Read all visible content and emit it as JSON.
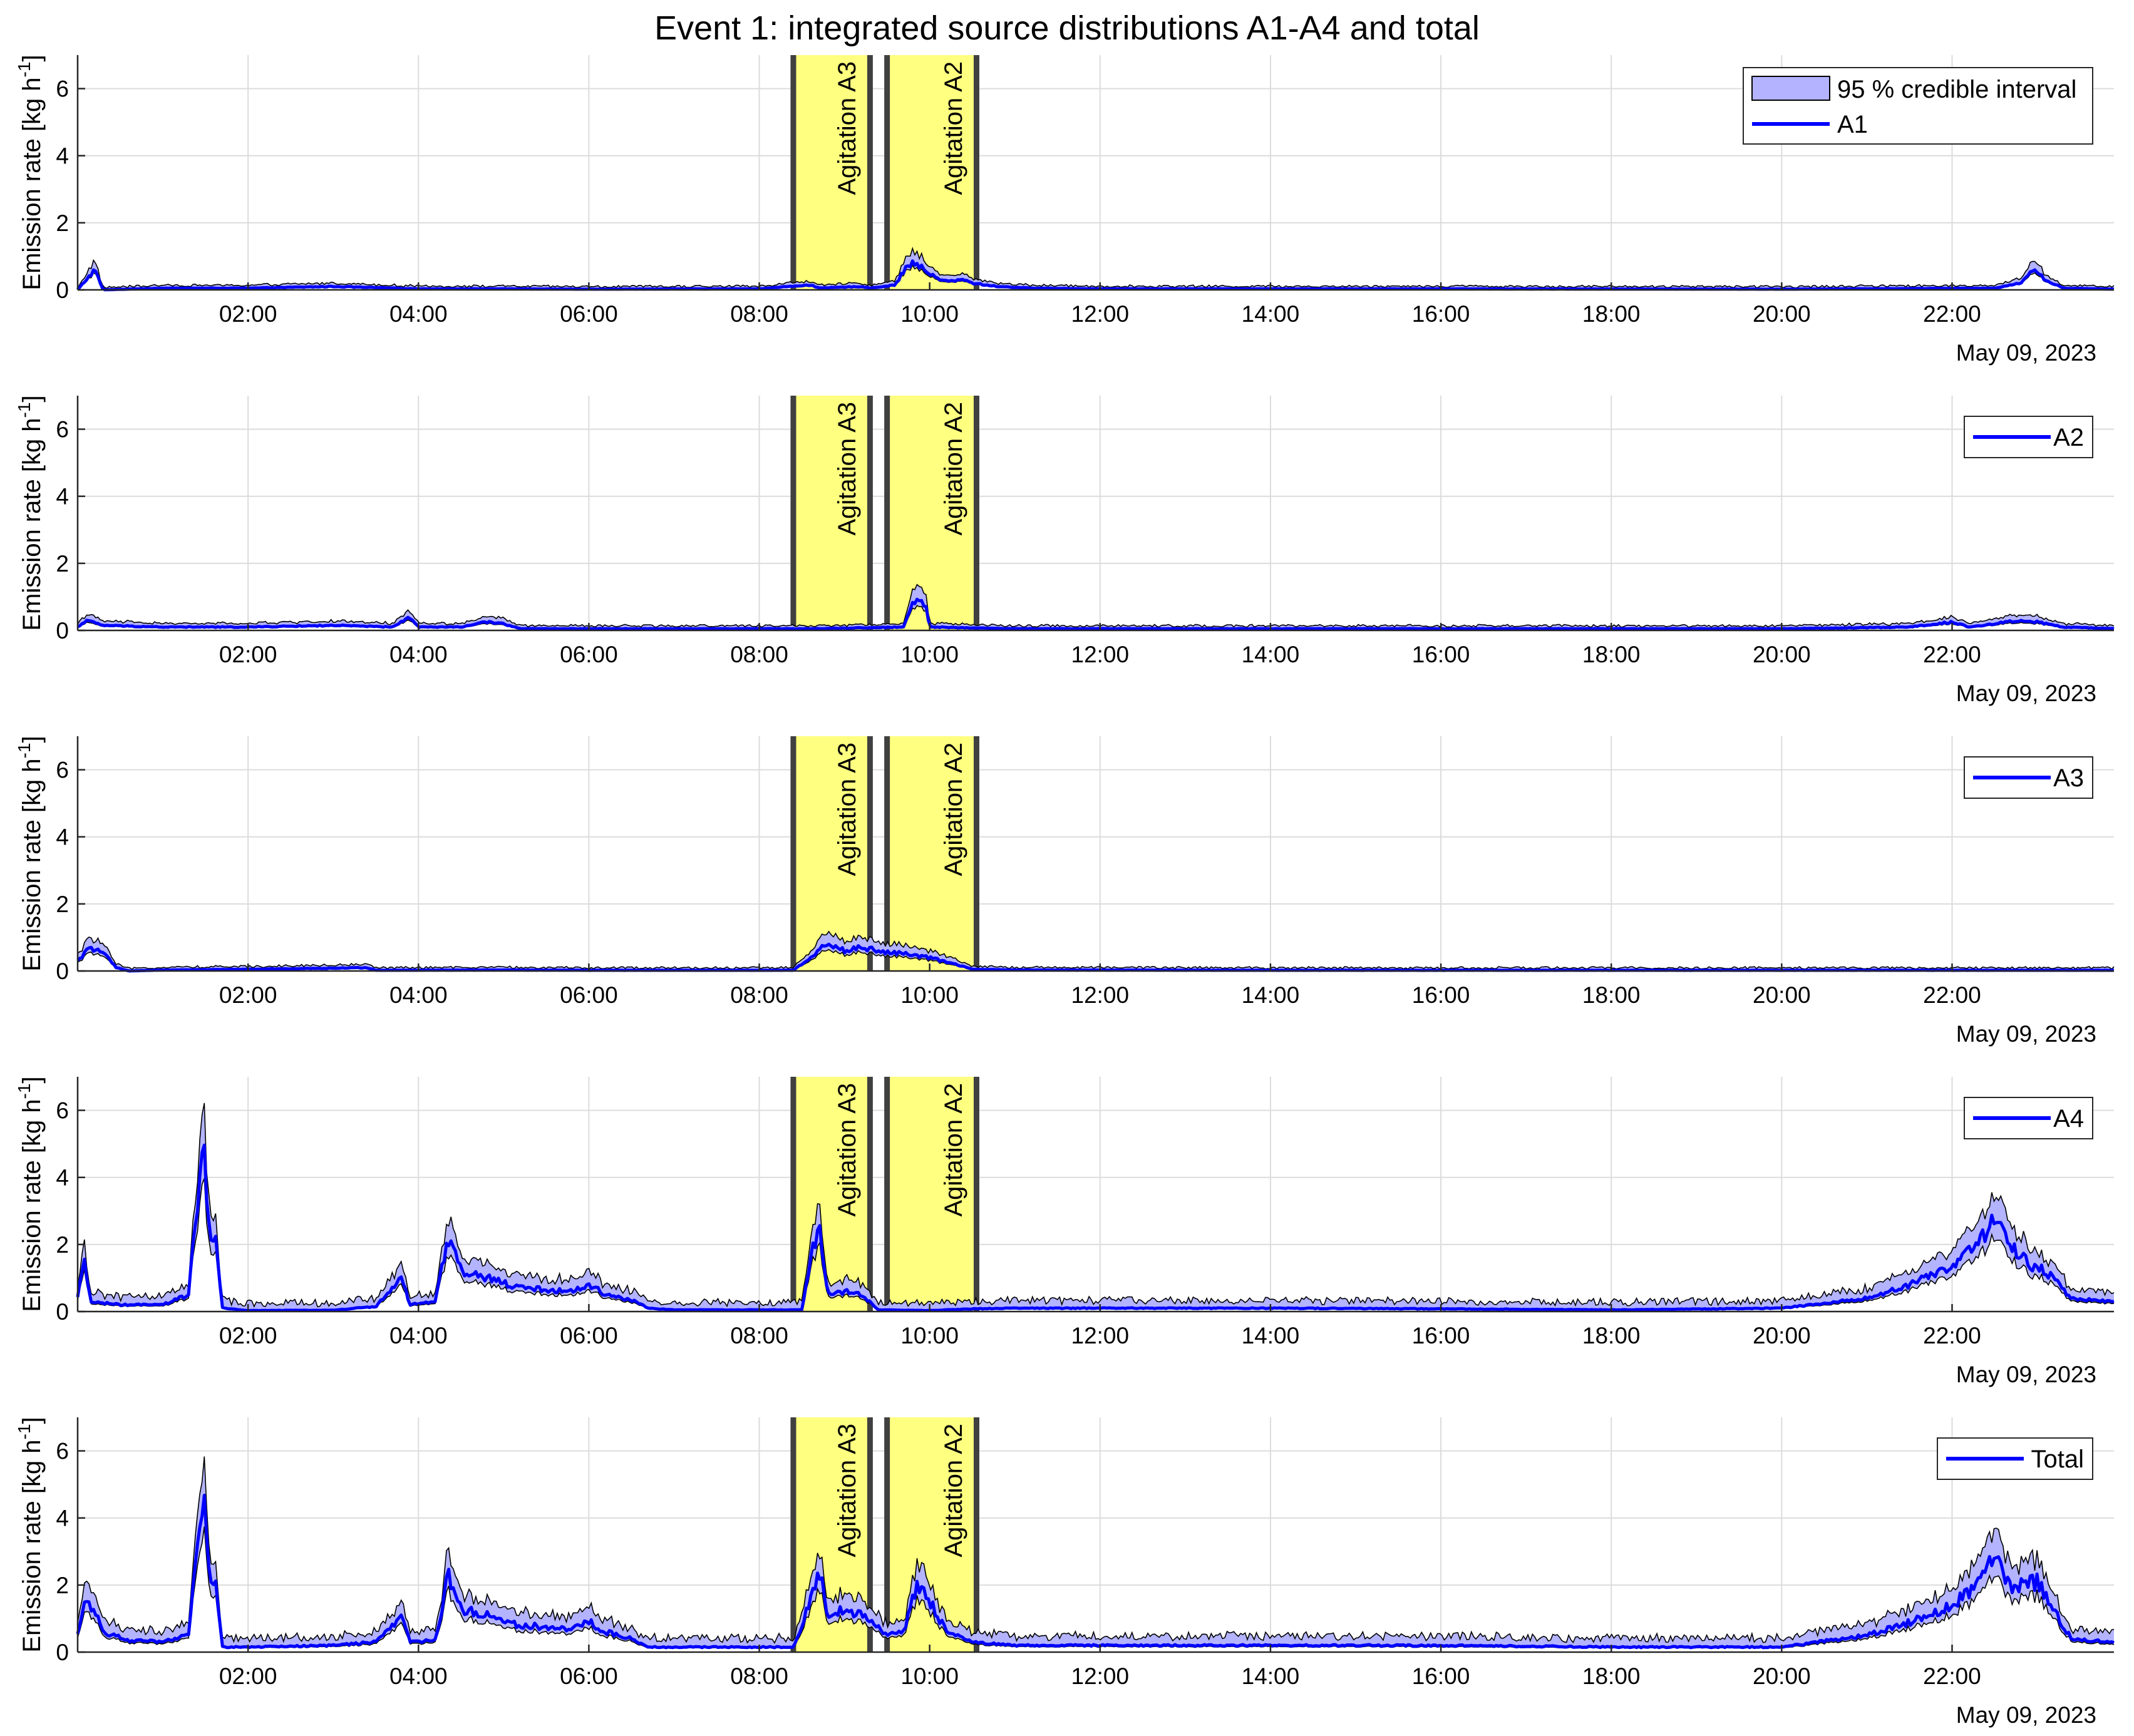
{
  "title": "Event 1: integrated source distributions A1-A4 and total",
  "colors": {
    "line": "#0000ff",
    "band": "#b3b3ff",
    "bandEdge": "#000000",
    "agitationFill": "#ffff80",
    "agitationEdge": "#404040",
    "grid": "#dcdcdc"
  },
  "chart_data": {
    "type": "line",
    "ylabel": "Emission rate [kg h",
    "ylabel_sup": "-1",
    "ylabel_tail": "]",
    "date_label": "May 09, 2023",
    "ylim": [
      0,
      7
    ],
    "yticks": [
      0,
      2,
      4,
      6
    ],
    "xlim_hours": [
      0,
      23.9
    ],
    "xticks": [
      2,
      4,
      6,
      8,
      10,
      12,
      14,
      16,
      18,
      20,
      22
    ],
    "xtick_labels": [
      "02:00",
      "04:00",
      "06:00",
      "08:00",
      "10:00",
      "12:00",
      "14:00",
      "16:00",
      "18:00",
      "20:00",
      "22:00"
    ],
    "grid": true,
    "agitations": [
      {
        "label": "Agitation A3",
        "start": 8.4,
        "end": 9.3
      },
      {
        "label": "Agitation A2",
        "start": 9.5,
        "end": 10.55
      }
    ],
    "band_label": "95 % credible interval",
    "panels": [
      {
        "series": "A1",
        "show_band_legend": true,
        "knots": [
          [
            0,
            0.0
          ],
          [
            0.1,
            0.3
          ],
          [
            0.2,
            0.6
          ],
          [
            0.3,
            0.0
          ],
          [
            1,
            0.05
          ],
          [
            2,
            0.05
          ],
          [
            3,
            0.1
          ],
          [
            4,
            0.03
          ],
          [
            5,
            0.03
          ],
          [
            6,
            0.02
          ],
          [
            8,
            0.03
          ],
          [
            8.6,
            0.15
          ],
          [
            8.7,
            0.05
          ],
          [
            9.2,
            0.1
          ],
          [
            9.3,
            0.05
          ],
          [
            9.6,
            0.15
          ],
          [
            9.75,
            0.8
          ],
          [
            9.9,
            0.7
          ],
          [
            10.0,
            0.45
          ],
          [
            10.2,
            0.25
          ],
          [
            10.4,
            0.3
          ],
          [
            10.5,
            0.2
          ],
          [
            10.8,
            0.1
          ],
          [
            11.2,
            0.05
          ],
          [
            12,
            0.03
          ],
          [
            16,
            0.03
          ],
          [
            20,
            0.02
          ],
          [
            22.5,
            0.05
          ],
          [
            22.8,
            0.2
          ],
          [
            22.95,
            0.6
          ],
          [
            23.1,
            0.3
          ],
          [
            23.3,
            0.05
          ],
          [
            23.9,
            0.02
          ]
        ],
        "band_lo": 0.85,
        "band_hi": 1.35,
        "band_add": 0.08
      },
      {
        "series": "A2",
        "show_band_legend": false,
        "knots": [
          [
            0,
            0.1
          ],
          [
            0.1,
            0.3
          ],
          [
            0.3,
            0.15
          ],
          [
            1,
            0.1
          ],
          [
            2,
            0.1
          ],
          [
            3,
            0.15
          ],
          [
            3.7,
            0.1
          ],
          [
            3.9,
            0.4
          ],
          [
            4,
            0.1
          ],
          [
            4.5,
            0.1
          ],
          [
            4.8,
            0.25
          ],
          [
            5,
            0.2
          ],
          [
            5.2,
            0.05
          ],
          [
            6,
            0.05
          ],
          [
            8,
            0.05
          ],
          [
            8.6,
            0.05
          ],
          [
            9.7,
            0.1
          ],
          [
            9.8,
            0.9
          ],
          [
            9.95,
            0.8
          ],
          [
            10.0,
            0.1
          ],
          [
            11,
            0.05
          ],
          [
            14,
            0.05
          ],
          [
            20,
            0.05
          ],
          [
            21.5,
            0.1
          ],
          [
            22,
            0.25
          ],
          [
            22.2,
            0.1
          ],
          [
            22.8,
            0.3
          ],
          [
            23,
            0.25
          ],
          [
            23.3,
            0.1
          ],
          [
            23.9,
            0.05
          ]
        ],
        "band_lo": 0.8,
        "band_hi": 1.4,
        "band_add": 0.08
      },
      {
        "series": "A3",
        "show_band_legend": false,
        "knots": [
          [
            0,
            0.3
          ],
          [
            0.15,
            0.7
          ],
          [
            0.3,
            0.55
          ],
          [
            0.45,
            0.1
          ],
          [
            0.6,
            0.0
          ],
          [
            1,
            0.03
          ],
          [
            2,
            0.05
          ],
          [
            3,
            0.08
          ],
          [
            3.4,
            0.1
          ],
          [
            3.5,
            0.02
          ],
          [
            5,
            0.03
          ],
          [
            6,
            0.02
          ],
          [
            8.4,
            0.02
          ],
          [
            8.6,
            0.4
          ],
          [
            8.8,
            0.85
          ],
          [
            9.0,
            0.6
          ],
          [
            9.2,
            0.7
          ],
          [
            9.4,
            0.6
          ],
          [
            9.7,
            0.5
          ],
          [
            10.0,
            0.4
          ],
          [
            10.3,
            0.2
          ],
          [
            10.5,
            0.05
          ],
          [
            11,
            0.03
          ],
          [
            14,
            0.02
          ],
          [
            20,
            0.02
          ],
          [
            23.9,
            0.02
          ]
        ],
        "band_lo": 0.8,
        "band_hi": 1.35,
        "band_add": 0.08
      },
      {
        "series": "A4",
        "show_band_legend": false,
        "knots": [
          [
            0,
            0.4
          ],
          [
            0.08,
            1.5
          ],
          [
            0.15,
            0.3
          ],
          [
            0.5,
            0.2
          ],
          [
            1.0,
            0.2
          ],
          [
            1.3,
            0.5
          ],
          [
            1.4,
            3.0
          ],
          [
            1.48,
            5.0
          ],
          [
            1.55,
            2.0
          ],
          [
            1.62,
            2.2
          ],
          [
            1.7,
            0.1
          ],
          [
            2,
            0.03
          ],
          [
            3,
            0.04
          ],
          [
            3.5,
            0.15
          ],
          [
            3.8,
            1.0
          ],
          [
            3.9,
            0.2
          ],
          [
            4.2,
            0.3
          ],
          [
            4.35,
            2.2
          ],
          [
            4.5,
            1.2
          ],
          [
            4.8,
            1.0
          ],
          [
            5.2,
            0.7
          ],
          [
            5.8,
            0.6
          ],
          [
            6.0,
            0.8
          ],
          [
            6.2,
            0.5
          ],
          [
            6.5,
            0.35
          ],
          [
            6.7,
            0.1
          ],
          [
            7,
            0.05
          ],
          [
            8.5,
            0.05
          ],
          [
            8.6,
            1.5
          ],
          [
            8.7,
            2.6
          ],
          [
            8.8,
            0.5
          ],
          [
            9.0,
            0.6
          ],
          [
            9.2,
            0.5
          ],
          [
            9.4,
            0.05
          ],
          [
            10,
            0.03
          ],
          [
            10.5,
            0.08
          ],
          [
            11,
            0.1
          ],
          [
            12,
            0.1
          ],
          [
            13,
            0.1
          ],
          [
            14,
            0.1
          ],
          [
            16,
            0.08
          ],
          [
            18,
            0.05
          ],
          [
            20,
            0.1
          ],
          [
            21,
            0.4
          ],
          [
            21.5,
            0.8
          ],
          [
            22,
            1.3
          ],
          [
            22.3,
            2.0
          ],
          [
            22.5,
            2.7
          ],
          [
            22.7,
            2.0
          ],
          [
            22.9,
            1.4
          ],
          [
            23.1,
            1.2
          ],
          [
            23.4,
            0.4
          ],
          [
            23.9,
            0.3
          ]
        ],
        "band_lo": 0.8,
        "band_hi": 1.2,
        "band_add": 0.25
      },
      {
        "series": "Total",
        "show_band_legend": false,
        "knots": [
          [
            0,
            0.5
          ],
          [
            0.08,
            1.5
          ],
          [
            0.2,
            1.3
          ],
          [
            0.3,
            0.6
          ],
          [
            0.6,
            0.35
          ],
          [
            1.0,
            0.3
          ],
          [
            1.3,
            0.5
          ],
          [
            1.4,
            3.0
          ],
          [
            1.48,
            5.0
          ],
          [
            1.55,
            2.0
          ],
          [
            1.62,
            2.2
          ],
          [
            1.7,
            0.15
          ],
          [
            2,
            0.15
          ],
          [
            3,
            0.2
          ],
          [
            3.5,
            0.3
          ],
          [
            3.8,
            1.1
          ],
          [
            3.9,
            0.3
          ],
          [
            4.2,
            0.35
          ],
          [
            4.35,
            2.3
          ],
          [
            4.5,
            1.3
          ],
          [
            4.8,
            1.1
          ],
          [
            5.2,
            0.8
          ],
          [
            5.8,
            0.7
          ],
          [
            6.0,
            0.9
          ],
          [
            6.2,
            0.6
          ],
          [
            6.5,
            0.4
          ],
          [
            6.7,
            0.15
          ],
          [
            7,
            0.15
          ],
          [
            8.4,
            0.15
          ],
          [
            8.6,
            1.5
          ],
          [
            8.7,
            2.6
          ],
          [
            8.8,
            1.0
          ],
          [
            9.0,
            1.3
          ],
          [
            9.3,
            1.0
          ],
          [
            9.5,
            0.5
          ],
          [
            9.7,
            0.6
          ],
          [
            9.85,
            2.0
          ],
          [
            10.0,
            1.5
          ],
          [
            10.2,
            0.6
          ],
          [
            10.5,
            0.3
          ],
          [
            11,
            0.2
          ],
          [
            12,
            0.2
          ],
          [
            14,
            0.2
          ],
          [
            16,
            0.2
          ],
          [
            18,
            0.15
          ],
          [
            20,
            0.15
          ],
          [
            21,
            0.5
          ],
          [
            21.5,
            0.9
          ],
          [
            22,
            1.4
          ],
          [
            22.3,
            2.0
          ],
          [
            22.5,
            2.8
          ],
          [
            22.7,
            2.0
          ],
          [
            22.9,
            2.0
          ],
          [
            23.0,
            2.1
          ],
          [
            23.2,
            1.2
          ],
          [
            23.4,
            0.4
          ],
          [
            23.9,
            0.3
          ]
        ],
        "band_lo": 0.8,
        "band_hi": 1.2,
        "band_add": 0.28
      }
    ]
  }
}
